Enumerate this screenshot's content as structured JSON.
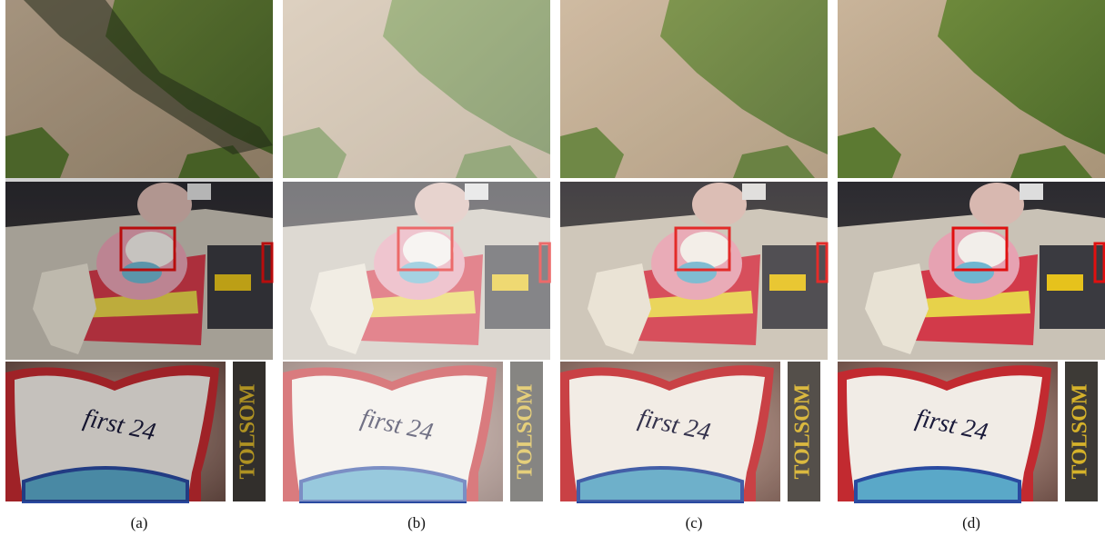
{
  "captions": [
    "(a)",
    "(b)",
    "(c)",
    "(d)"
  ],
  "crop_texts": {
    "handwriting": "first 24",
    "label": "TOLSOM"
  }
}
